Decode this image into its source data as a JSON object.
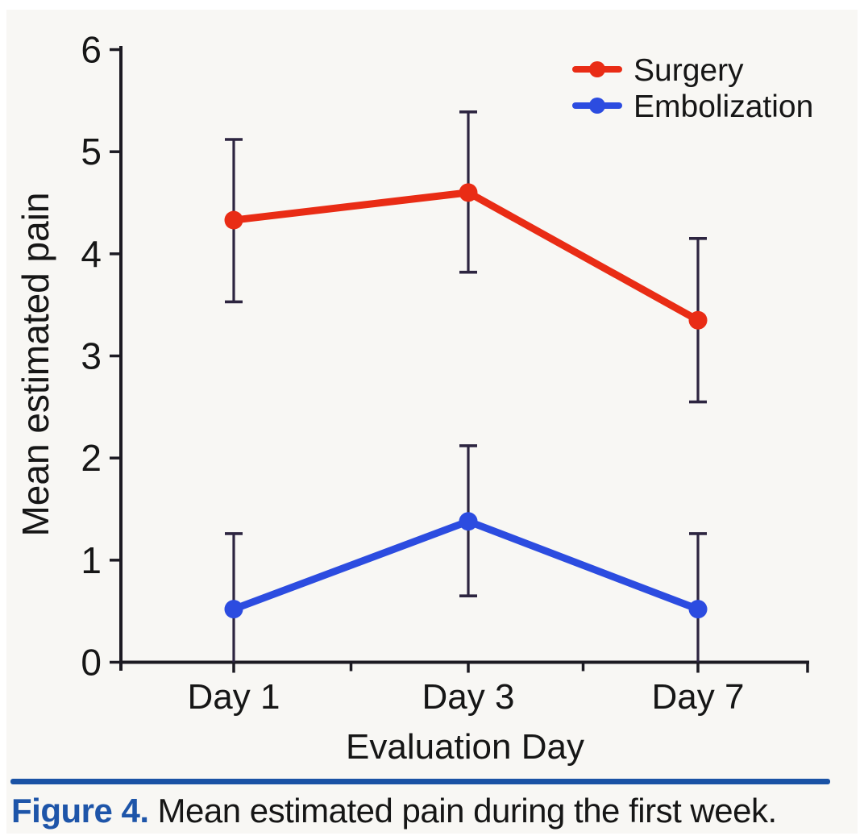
{
  "figure": {
    "caption_label": "Figure 4.",
    "caption_text": "Mean estimated pain during the first week."
  },
  "colors": {
    "caption_accent": "#1e55a9",
    "divider_rule": "#1a52a5",
    "error_bar": "#2d2540",
    "axis": "#1c1a22",
    "text": "#161616",
    "panel_background": "#f8f7f4"
  },
  "chart_data": {
    "type": "line",
    "title": "",
    "categories": [
      "Day 1",
      "Day 3",
      "Day 7"
    ],
    "xlabel": "Evaluation Day",
    "ylabel": "Mean estimated pain",
    "ylim": [
      0,
      6
    ],
    "yticks": [
      0,
      1,
      2,
      3,
      4,
      5,
      6
    ],
    "grid": false,
    "legend_position": "top-right",
    "error_bars": true,
    "series": [
      {
        "name": "Surgery",
        "color": "#e92c15",
        "values": [
          4.33,
          4.6,
          3.35
        ],
        "err_low": [
          3.53,
          3.82,
          2.55
        ],
        "err_high": [
          5.12,
          5.39,
          4.15
        ]
      },
      {
        "name": "Embolization",
        "color": "#2c4ce0",
        "values": [
          0.52,
          1.38,
          0.52
        ],
        "err_low": [
          0,
          0.65,
          0
        ],
        "err_high": [
          1.26,
          2.12,
          1.26
        ]
      }
    ]
  }
}
